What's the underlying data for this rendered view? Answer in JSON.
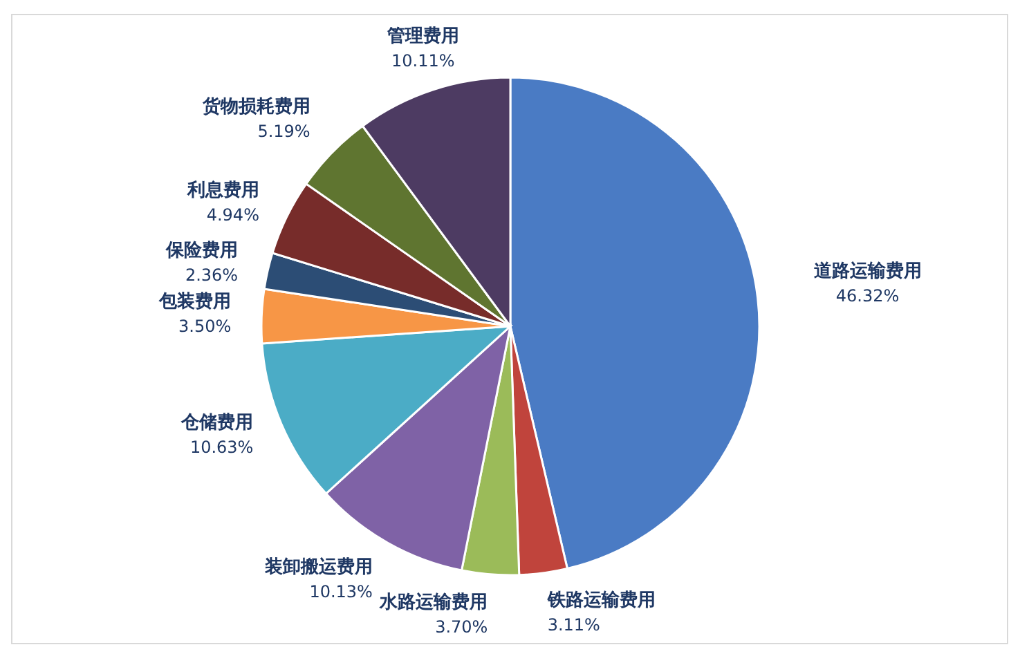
{
  "chart_data": {
    "type": "pie",
    "categories": [
      "道路运输费用",
      "铁路运输费用",
      "水路运输费用",
      "装卸搬运费用",
      "仓储费用",
      "包装费用",
      "保险费用",
      "利息费用",
      "货物损耗费用",
      "管理费用"
    ],
    "values": [
      46.32,
      3.11,
      3.7,
      10.13,
      10.63,
      3.5,
      2.36,
      4.94,
      5.19,
      10.11
    ],
    "value_labels": [
      "46.32%",
      "3.11%",
      "3.70%",
      "10.13%",
      "10.63%",
      "3.50%",
      "2.36%",
      "4.94%",
      "5.19%",
      "10.11%"
    ],
    "colors": [
      "#4a7bc4",
      "#c0443c",
      "#9bbb59",
      "#7f62a6",
      "#4bacc6",
      "#f79646",
      "#2c4d75",
      "#772c2a",
      "#5f7530",
      "#4d3b62"
    ]
  }
}
